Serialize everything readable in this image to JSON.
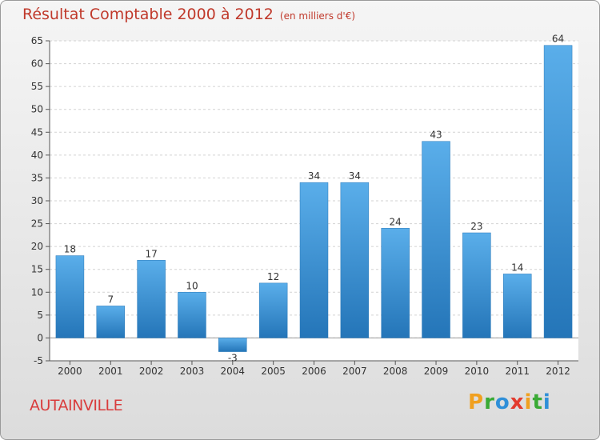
{
  "chart_data": {
    "type": "bar",
    "title": "Résultat Comptable 2000 à 2012",
    "subtitle": "(en milliers d'€)",
    "categories": [
      "2000",
      "2001",
      "2002",
      "2003",
      "2004",
      "2005",
      "2006",
      "2007",
      "2008",
      "2009",
      "2010",
      "2011",
      "2012"
    ],
    "values": [
      18,
      7,
      17,
      10,
      -3,
      12,
      34,
      34,
      24,
      43,
      23,
      14,
      64
    ],
    "ylim": [
      -5,
      65
    ],
    "yticks": [
      -5,
      0,
      5,
      10,
      15,
      20,
      25,
      30,
      35,
      40,
      45,
      50,
      55,
      60,
      65
    ],
    "grid": true,
    "bar_color": "#3b8fd1"
  },
  "commune_name": "AUTAINVILLE",
  "brand": {
    "text": "Proxiti",
    "letters": [
      "P",
      "r",
      "o",
      "x",
      "i",
      "t",
      "i"
    ],
    "colors": [
      "#f0a020",
      "#3aaa35",
      "#2f8fd8",
      "#e33b2e",
      "#f0a020",
      "#3aaa35",
      "#2f8fd8"
    ]
  }
}
